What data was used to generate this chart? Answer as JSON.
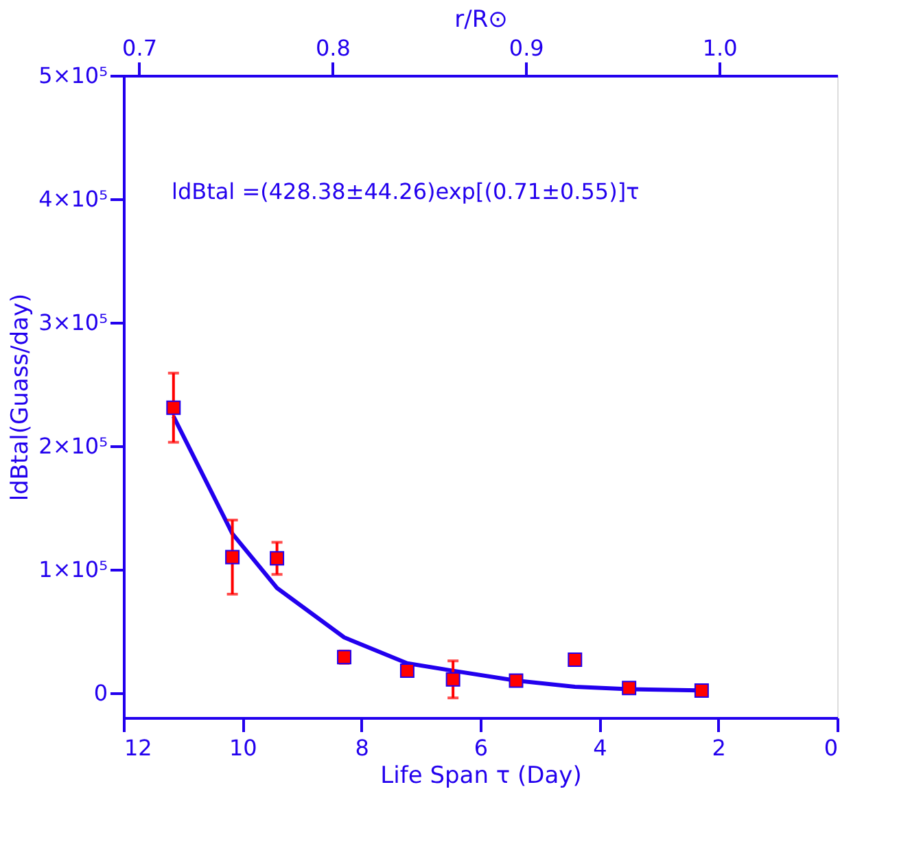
{
  "chart_data": {
    "type": "scatter",
    "xlabel": "Life Span τ (Day)",
    "ylabel": "ldBtal(Guass/day)",
    "x2label": "r/R⊙",
    "annotations": [
      "ldBtal =(428.38±44.26)exp[(0.71±0.55)]τ"
    ],
    "xlim": [
      12,
      0
    ],
    "xticks": [
      12,
      10,
      8,
      6,
      4,
      2,
      0
    ],
    "x2lim": [
      0.692,
      1.061
    ],
    "x2ticks": [
      {
        "value": 0.7,
        "label": "0.7"
      },
      {
        "value": 0.8,
        "label": "0.8"
      },
      {
        "value": 0.9,
        "label": "0.9"
      },
      {
        "value": 1.0,
        "label": "1.0"
      }
    ],
    "ylim": [
      -20000,
      500000
    ],
    "yticks": [
      0,
      {
        "value": 100000,
        "label": "1×10⁵"
      },
      {
        "value": 200000,
        "label": "2×10⁵"
      },
      {
        "value": 300000,
        "label": "3×10⁵"
      },
      {
        "value": 400000,
        "label": "4×10⁵"
      },
      {
        "value": 500000,
        "label": "5×10⁵"
      }
    ],
    "grid": false,
    "series": [
      {
        "type": "line",
        "color": "#2200ee",
        "line_style": "solid",
        "marker": "none",
        "x": [
          11.16,
          10.17,
          9.42,
          8.29,
          7.23,
          6.46,
          5.4,
          4.41,
          3.5,
          2.28
        ],
        "values": [
          224000,
          129000,
          85000,
          45000,
          24000,
          18000,
          10000,
          5000,
          3000,
          2000
        ]
      },
      {
        "color": "#ff0000",
        "marker": "square",
        "x": [
          11.16,
          10.17,
          9.42,
          8.29,
          7.23,
          6.46,
          5.4,
          4.41,
          3.5,
          2.28
        ],
        "values": [
          231000,
          110000,
          109000,
          29000,
          18000,
          11000,
          10000,
          27000,
          4000,
          2000
        ],
        "errors": [
          28000,
          30000,
          13000,
          5000,
          4000,
          15000,
          3000,
          null,
          null,
          null
        ]
      }
    ]
  }
}
